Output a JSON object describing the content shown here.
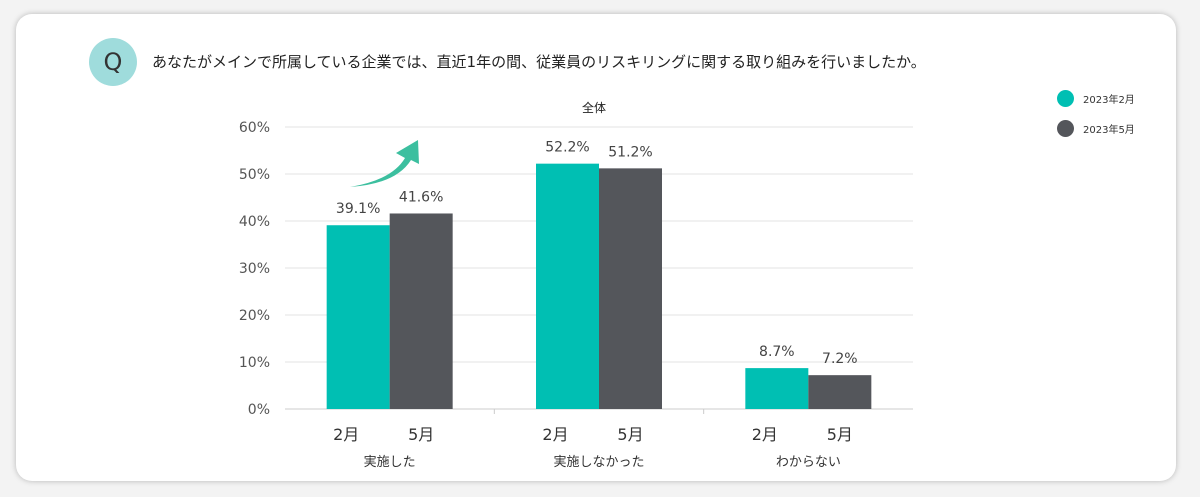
{
  "question": {
    "badge": "Q",
    "text": "あなたがメインで所属している企業では、直近1年の間、従業員のリスキリングに関する取り組みを行いましたか。"
  },
  "colors": {
    "feb": "#00bfb3",
    "may": "#54565b",
    "arrow": "#3cbf9f"
  },
  "chart_data": {
    "type": "bar",
    "title": "全体",
    "categories": [
      "実施した",
      "実施しなかった",
      "わからない"
    ],
    "sub_labels": [
      "2月",
      "5月"
    ],
    "series": [
      {
        "name": "2023年2月",
        "values": [
          39.1,
          52.2,
          8.7
        ]
      },
      {
        "name": "2023年5月",
        "values": [
          41.6,
          51.2,
          7.2
        ]
      }
    ],
    "value_format": "{v}%",
    "ylim": [
      0,
      60
    ],
    "yticks": [
      "0%",
      "10%",
      "20%",
      "30%",
      "40%",
      "50%",
      "60%"
    ],
    "grid": true,
    "legend": "top-right",
    "annotation": "up-arrow over 実施した"
  }
}
